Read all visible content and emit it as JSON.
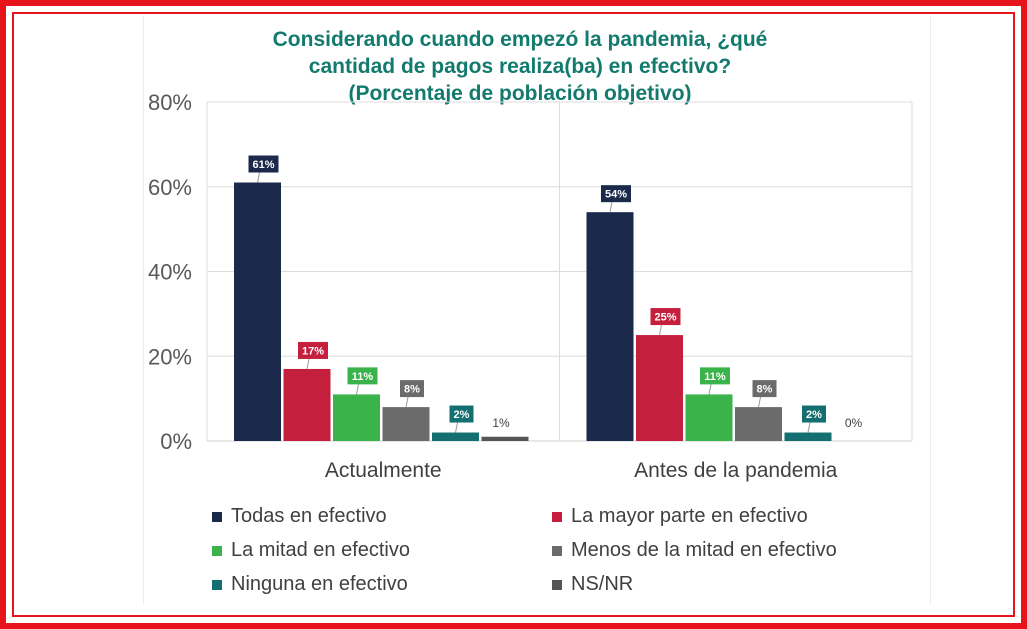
{
  "title": {
    "line1": "Considerando cuando empezó la pandemia, ¿qué",
    "line2": "cantidad de pagos realiza(ba) en efectivo?",
    "line3": "(Porcentaje de población objetivo)"
  },
  "colors": {
    "frame": "#e8141c",
    "title": "#137a6e",
    "series": [
      "#1b2a4a",
      "#c4203d",
      "#3ab34a",
      "#6b6b6b",
      "#136f70",
      "#555555"
    ]
  },
  "chart_data": {
    "type": "bar",
    "title": "Considerando cuando empezó la pandemia, ¿qué cantidad de pagos realiza(ba) en efectivo? (Porcentaje de población objetivo)",
    "categories": [
      "Actualmente",
      "Antes de la pandemia"
    ],
    "ylim": [
      0,
      80
    ],
    "yticks": [
      "0%",
      "20%",
      "40%",
      "60%",
      "80%"
    ],
    "ytick_values": [
      0,
      20,
      40,
      60,
      80
    ],
    "grid": true,
    "legend_position": "bottom",
    "series": [
      {
        "name": "Todas en efectivo",
        "values": [
          61,
          54
        ],
        "labels": [
          "61%",
          "54%"
        ],
        "label_style": "boxed"
      },
      {
        "name": "La mayor parte en efectivo",
        "values": [
          17,
          25
        ],
        "labels": [
          "17%",
          "25%"
        ],
        "label_style": "boxed"
      },
      {
        "name": "La mitad en efectivo",
        "values": [
          11,
          11
        ],
        "labels": [
          "11%",
          "11%"
        ],
        "label_style": "boxed"
      },
      {
        "name": "Menos de la mitad en efectivo",
        "values": [
          8,
          8
        ],
        "labels": [
          "8%",
          "8%"
        ],
        "label_style": "boxed"
      },
      {
        "name": "Ninguna en efectivo",
        "values": [
          2,
          2
        ],
        "labels": [
          "2%",
          "2%"
        ],
        "label_style": "boxed"
      },
      {
        "name": "NS/NR",
        "values": [
          1,
          0
        ],
        "labels": [
          "1%",
          "0%"
        ],
        "label_style": "plain"
      }
    ]
  }
}
